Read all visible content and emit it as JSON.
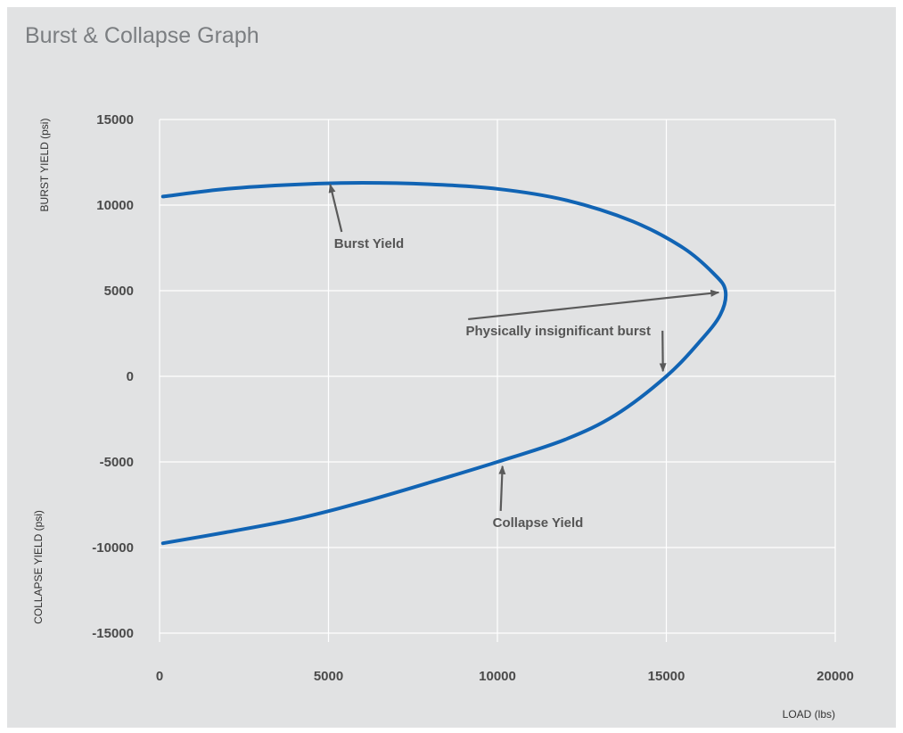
{
  "chart_data": {
    "type": "line",
    "title": "Burst & Collapse Graph",
    "xlabel": "LOAD (lbs)",
    "ylabel_top": "BURST YIELD (psi)",
    "ylabel_bottom": "COLLAPSE YIELD (psi)",
    "xlim": [
      0,
      20000
    ],
    "ylim": [
      -15000,
      15000
    ],
    "xticks": [
      0,
      5000,
      10000,
      15000,
      20000
    ],
    "yticks": [
      15000,
      10000,
      5000,
      0,
      -5000,
      -10000,
      -15000
    ],
    "grid": true,
    "line_color": "#1164b4",
    "series": [
      {
        "x": [
          100,
          2000,
          4000,
          6000,
          8000,
          10000,
          12000,
          14000,
          15500,
          16400,
          16750,
          16600,
          16000,
          15000,
          13500,
          12000,
          10000,
          8000,
          6000,
          4000,
          2000,
          100
        ],
        "y": [
          10500,
          10950,
          11200,
          11300,
          11220,
          10950,
          10300,
          9050,
          7500,
          6000,
          5000,
          3600,
          2050,
          0,
          -2250,
          -3700,
          -5000,
          -6200,
          -7350,
          -8350,
          -9100,
          -9750
        ]
      }
    ],
    "annotations": [
      {
        "text": "Burst Yield",
        "x": 6200,
        "y": 7500,
        "arrow_to": [
          [
            5050,
            11200
          ]
        ]
      },
      {
        "text": "Physically insignificant burst",
        "x": 11800,
        "y": 2400,
        "arrow_to": [
          [
            16550,
            4900
          ],
          [
            14900,
            300
          ]
        ]
      },
      {
        "text": "Collapse Yield",
        "x": 11200,
        "y": -8800,
        "arrow_to": [
          [
            10150,
            -5250
          ]
        ]
      }
    ]
  }
}
